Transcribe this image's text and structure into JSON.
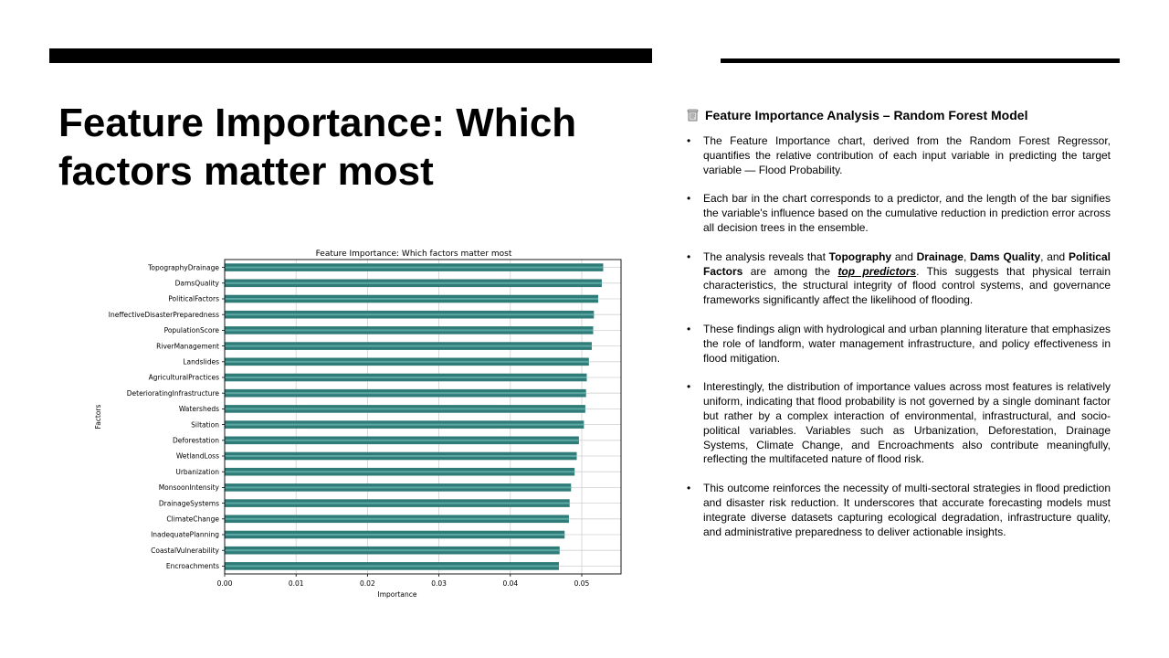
{
  "slide": {
    "title": "Feature Importance: Which factors matter most"
  },
  "panel": {
    "heading_icon": "scroll-icon",
    "heading": "Feature Importance Analysis – Random Forest Model",
    "bullets": [
      [
        {
          "t": "The Feature Importance chart, derived from the Random Forest Regressor, quantifies the relative contribution of each input variable in predicting the target variable — Flood Probability."
        }
      ],
      [
        {
          "t": "Each bar in the chart corresponds to a predictor, and the length of the bar signifies the variable's influence based on the cumulative reduction in prediction error across all decision trees in the ensemble."
        }
      ],
      [
        {
          "t": "The analysis reveals that "
        },
        {
          "t": "Topography",
          "b": true
        },
        {
          "t": " and "
        },
        {
          "t": "Drainage",
          "b": true
        },
        {
          "t": ", "
        },
        {
          "t": "Dams Quality",
          "b": true
        },
        {
          "t": ", and "
        },
        {
          "t": "Political Factors",
          "b": true
        },
        {
          "t": " are among the "
        },
        {
          "t": "top predictors",
          "b": true,
          "i": true,
          "u": true
        },
        {
          "t": ". This suggests that physical terrain characteristics, the structural integrity of flood control systems, and governance frameworks significantly affect the likelihood of flooding."
        }
      ],
      [
        {
          "t": "These findings align with hydrological and urban planning literature that emphasizes the role of landform, water management infrastructure, and policy effectiveness in flood mitigation."
        }
      ],
      [
        {
          "t": "Interestingly, the distribution of importance values across most features is relatively uniform, indicating that flood probability is not governed by a single dominant factor but rather by a complex interaction of environmental, infrastructural, and socio-political variables. Variables such as Urbanization, Deforestation, Drainage Systems, Climate Change, and Encroachments also contribute meaningfully, reflecting the multifaceted nature of flood risk."
        }
      ],
      [
        {
          "t": "This outcome reinforces the necessity of multi-sectoral strategies in flood prediction and disaster risk reduction. It underscores that accurate forecasting models must integrate diverse datasets capturing ecological degradation, infrastructure quality, and administrative preparedness to deliver actionable insights."
        }
      ]
    ]
  },
  "chart_data": {
    "type": "bar",
    "orientation": "horizontal",
    "title": "Feature Importance: Which factors matter most",
    "xlabel": "Importance",
    "ylabel": "Factors",
    "categories": [
      "TopographyDrainage",
      "DamsQuality",
      "PoliticalFactors",
      "IneffectiveDisasterPreparedness",
      "PopulationScore",
      "RiverManagement",
      "Landslides",
      "AgriculturalPractices",
      "DeterioratingInfrastructure",
      "Watersheds",
      "Siltation",
      "Deforestation",
      "WetlandLoss",
      "Urbanization",
      "MonsoonIntensity",
      "DrainageSystems",
      "ClimateChange",
      "InadequatePlanning",
      "CoastalVulnerability",
      "Encroachments"
    ],
    "values": [
      0.053,
      0.0528,
      0.0523,
      0.0517,
      0.0516,
      0.0514,
      0.051,
      0.0507,
      0.0506,
      0.0505,
      0.0503,
      0.0496,
      0.0493,
      0.049,
      0.0485,
      0.0483,
      0.0482,
      0.0476,
      0.0469,
      0.0468
    ],
    "xlim": [
      0,
      0.0555
    ],
    "xticks": [
      "0.00",
      "0.01",
      "0.02",
      "0.03",
      "0.04",
      "0.05"
    ],
    "grid": true,
    "bar_color": "#2e7b78",
    "bar_highlight": "#5aa7a3"
  }
}
